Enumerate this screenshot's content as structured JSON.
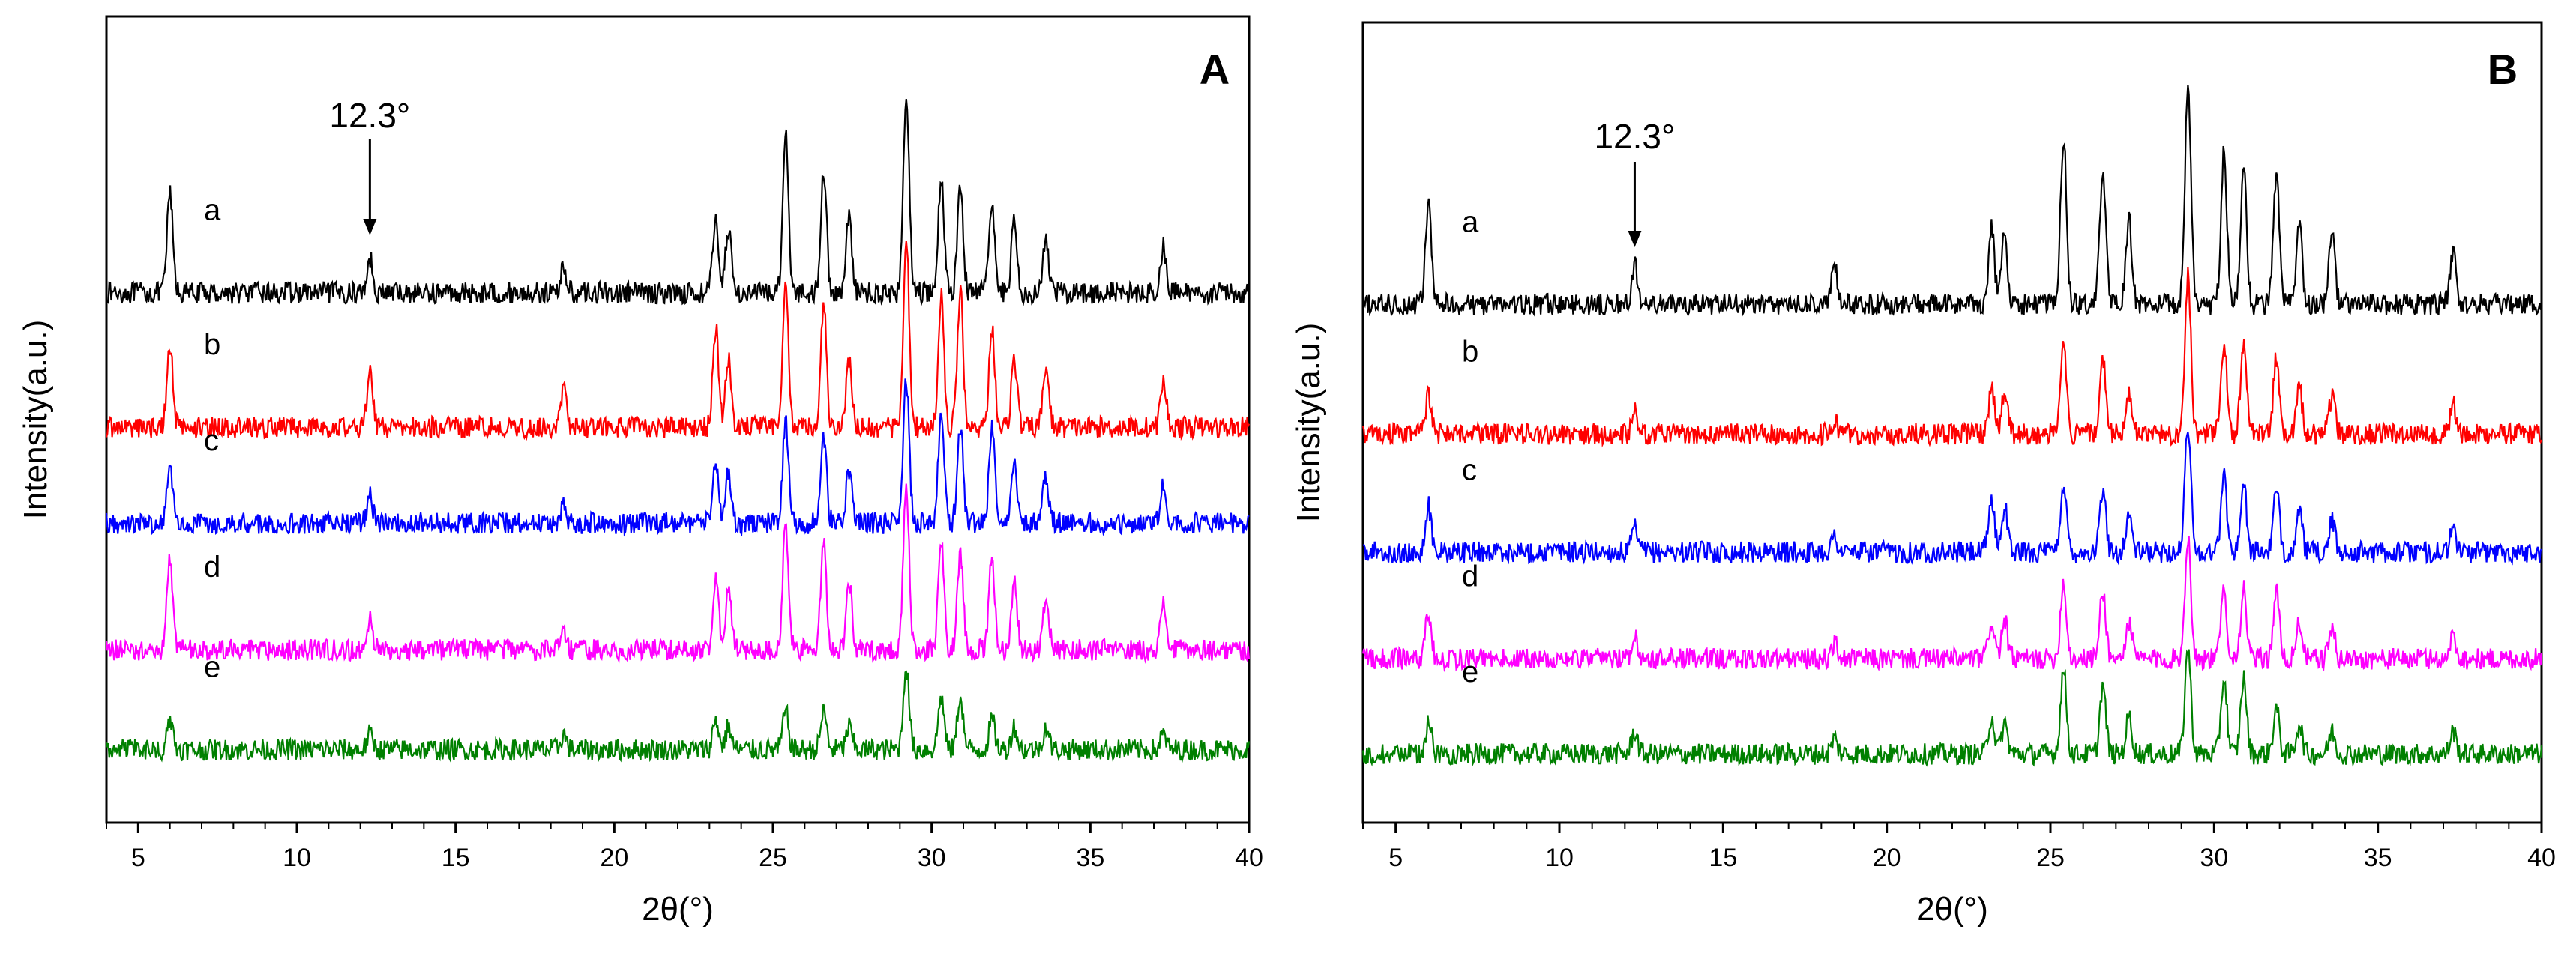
{
  "chart_data": [
    {
      "type": "line",
      "panel": "A",
      "title": "",
      "panel_label": "A",
      "xlabel": "2θ(°)",
      "ylabel": "Intensity(a.u.)",
      "xlim": [
        4,
        40
      ],
      "xticks": [
        5,
        10,
        15,
        20,
        25,
        30,
        35,
        40
      ],
      "y_ticks_shown": false,
      "annotation": {
        "text": "12.3°",
        "x": 12.3,
        "arrow": true
      },
      "peak_positions": [
        6.0,
        12.3,
        18.4,
        23.2,
        23.6,
        25.4,
        26.6,
        27.4,
        29.2,
        30.3,
        30.9,
        31.9,
        32.6,
        33.6,
        37.3
      ],
      "series": [
        {
          "name": "a",
          "label": "a",
          "color": "#000000",
          "baseline": 6.9,
          "peak_heights": [
            1.3,
            0.45,
            0.35,
            1.0,
            0.85,
            2.1,
            1.6,
            1.0,
            2.6,
            1.5,
            1.4,
            1.2,
            0.9,
            0.7,
            0.6
          ]
        },
        {
          "name": "b",
          "label": "b",
          "color": "#ff0000",
          "baseline": 5.15,
          "peak_heights": [
            1.1,
            0.7,
            0.5,
            1.3,
            0.9,
            1.9,
            1.6,
            0.9,
            2.5,
            1.7,
            1.8,
            1.3,
            0.9,
            0.8,
            0.6
          ]
        },
        {
          "name": "c",
          "label": "c",
          "color": "#0000ff",
          "baseline": 3.9,
          "peak_heights": [
            0.7,
            0.35,
            0.25,
            0.8,
            0.7,
            1.3,
            1.1,
            0.7,
            1.9,
            1.4,
            1.3,
            1.3,
            0.8,
            0.6,
            0.5
          ]
        },
        {
          "name": "d",
          "label": "d",
          "color": "#ff00ff",
          "baseline": 2.25,
          "peak_heights": [
            1.2,
            0.4,
            0.3,
            1.0,
            0.8,
            1.6,
            1.4,
            0.9,
            2.1,
            1.4,
            1.3,
            1.2,
            0.9,
            0.7,
            0.6
          ]
        },
        {
          "name": "e",
          "label": "e",
          "color": "#008000",
          "baseline": 0.95,
          "peak_heights": [
            0.4,
            0.2,
            0.2,
            0.4,
            0.3,
            0.5,
            0.5,
            0.3,
            1.1,
            0.7,
            0.7,
            0.4,
            0.3,
            0.3,
            0.2
          ]
        }
      ]
    },
    {
      "type": "line",
      "panel": "B",
      "title": "",
      "panel_label": "B",
      "xlabel": "2θ(°)",
      "ylabel": "Intensity(a.u.)",
      "xlim": [
        4,
        40
      ],
      "xticks": [
        5,
        10,
        15,
        20,
        25,
        30,
        35,
        40
      ],
      "y_ticks_shown": false,
      "annotation": {
        "text": "12.3°",
        "x": 12.3,
        "arrow": true
      },
      "peak_positions": [
        6.0,
        12.3,
        18.4,
        23.2,
        23.6,
        25.4,
        26.6,
        27.4,
        29.2,
        30.3,
        30.9,
        31.9,
        32.6,
        33.6,
        37.3
      ],
      "series": [
        {
          "name": "a",
          "label": "a",
          "color": "#000000",
          "baseline": 6.8,
          "peak_heights": [
            1.3,
            0.5,
            0.5,
            1.0,
            0.9,
            2.2,
            1.8,
            1.1,
            2.9,
            2.0,
            1.8,
            1.7,
            1.0,
            0.9,
            0.7
          ]
        },
        {
          "name": "b",
          "label": "b",
          "color": "#ff0000",
          "baseline": 5.1,
          "peak_heights": [
            0.5,
            0.3,
            0.2,
            0.6,
            0.5,
            1.2,
            1.0,
            0.5,
            2.1,
            1.2,
            1.2,
            1.0,
            0.6,
            0.5,
            0.4
          ]
        },
        {
          "name": "c",
          "label": "c",
          "color": "#0000ff",
          "baseline": 3.55,
          "peak_heights": [
            0.6,
            0.3,
            0.2,
            0.7,
            0.6,
            0.9,
            0.8,
            0.5,
            1.7,
            1.0,
            0.9,
            0.8,
            0.5,
            0.4,
            0.3
          ]
        },
        {
          "name": "d",
          "label": "d",
          "color": "#ff00ff",
          "baseline": 2.15,
          "peak_heights": [
            0.6,
            0.3,
            0.2,
            0.5,
            0.5,
            1.0,
            0.9,
            0.5,
            1.6,
            0.9,
            0.9,
            0.9,
            0.5,
            0.4,
            0.3
          ]
        },
        {
          "name": "e",
          "label": "e",
          "color": "#008000",
          "baseline": 0.9,
          "peak_heights": [
            0.4,
            0.3,
            0.2,
            0.5,
            0.4,
            1.1,
            0.9,
            0.5,
            1.4,
            1.0,
            1.0,
            0.6,
            0.4,
            0.3,
            0.3
          ]
        }
      ]
    }
  ]
}
